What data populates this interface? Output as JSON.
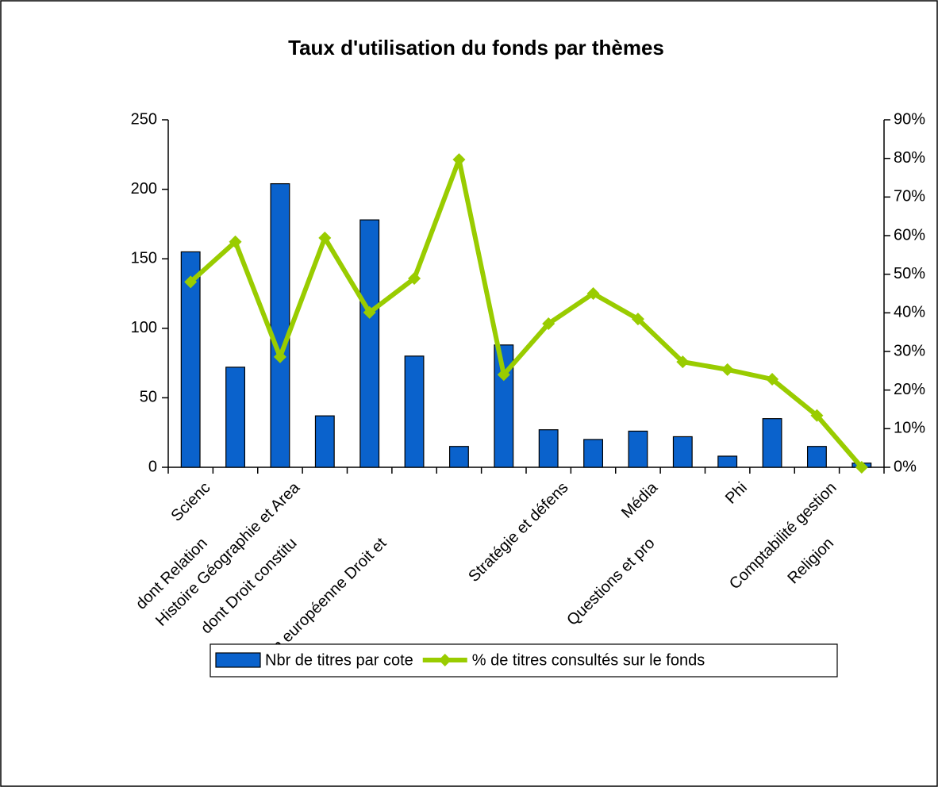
{
  "chart_data": {
    "type": "bar_line",
    "title": "Taux d'utilisation du fonds par thèmes",
    "categories": [
      "Scienc",
      "dont Relation",
      "Histoire Géographie et Area",
      "dont Droit constitu",
      null,
      "Union européenne Droit et",
      null,
      null,
      "Stratégie et défens",
      null,
      "Média",
      "Questions et pro",
      "Phi",
      null,
      "Comptabilité gestion",
      "Religion"
    ],
    "series": [
      {
        "name": "Nbr de titres par cote",
        "color": "#0a62cc",
        "type": "bar",
        "values": [
          155,
          72,
          204,
          37,
          178,
          80,
          15,
          88,
          27,
          20,
          26,
          22,
          8,
          35,
          15,
          3
        ]
      },
      {
        "name": "% de titres consultés sur le fonds",
        "color": "#99cc00",
        "type": "line",
        "axis": "y2",
        "values": [
          48,
          58.4,
          28.6,
          59.4,
          40.1,
          48.9,
          79.7,
          24,
          37.2,
          45,
          38.4,
          27.3,
          25.3,
          22.8,
          13.4,
          0
        ]
      }
    ],
    "ylim": [
      0,
      250
    ],
    "yticks": [
      0,
      50,
      100,
      150,
      200,
      250
    ],
    "y2lim": [
      0,
      90
    ],
    "y2ticks": [
      {
        "value": 0,
        "label": "0%"
      },
      {
        "value": 10,
        "label": "10%"
      },
      {
        "value": 20,
        "label": "20%"
      },
      {
        "value": 30,
        "label": "30%"
      },
      {
        "value": 40,
        "label": "40%"
      },
      {
        "value": 50,
        "label": "50%"
      },
      {
        "value": 60,
        "label": "60%"
      },
      {
        "value": 70,
        "label": "70%"
      },
      {
        "value": 80,
        "label": "80%"
      },
      {
        "value": 90,
        "label": "90%"
      }
    ],
    "legend": "bottom"
  }
}
